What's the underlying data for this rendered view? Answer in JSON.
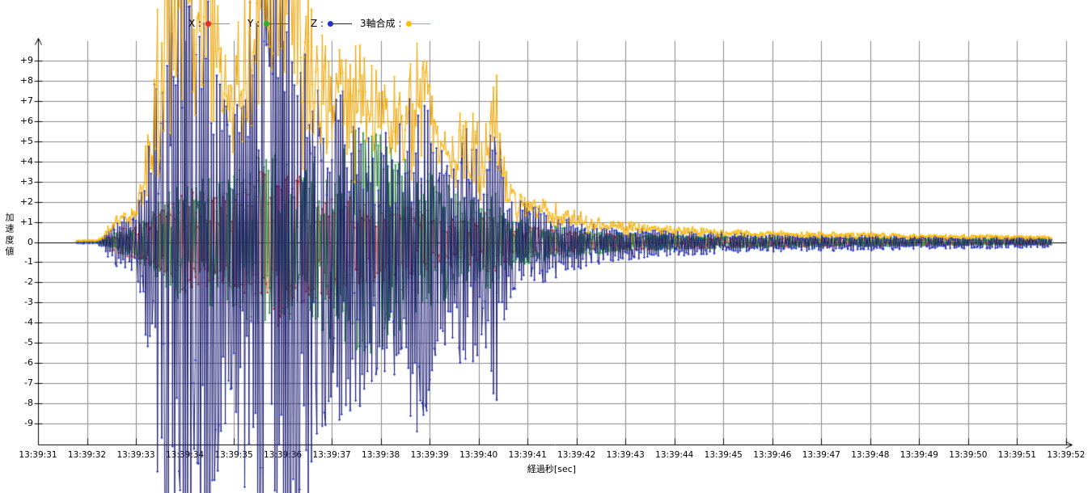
{
  "chart_data": {
    "type": "line",
    "title": "",
    "xlabel": "経過秒[sec]",
    "ylabel": "加速度値",
    "grid": true,
    "legend_position": "top",
    "ylim": [
      -9,
      9
    ],
    "y_ticks": [
      "+9",
      "+8",
      "+7",
      "+6",
      "+5",
      "+4",
      "+3",
      "+2",
      "+1",
      "0",
      "-1",
      "-2",
      "-3",
      "-4",
      "-5",
      "-6",
      "-7",
      "-8",
      "-9"
    ],
    "x_ticks": [
      "13:39:31",
      "13:39:32",
      "13:39:33",
      "13:39:34",
      "13:39:35",
      "13:39:36",
      "13:39:37",
      "13:39:38",
      "13:39:39",
      "13:39:40",
      "13:39:41",
      "13:39:42",
      "13:39:43",
      "13:39:44",
      "13:39:45",
      "13:39:46",
      "13:39:47",
      "13:39:48",
      "13:39:49",
      "13:39:50",
      "13:39:51",
      "13:39:52"
    ],
    "sampling": {
      "t_start": 0.79,
      "t_end": 20.72,
      "dt": 0.022,
      "seed": 12,
      "time_of_t0": "13:39:31"
    },
    "series": [
      {
        "name": "X",
        "legend_label": "X :",
        "color": "#f0735f",
        "marker_color": "#ee2a1a",
        "envelope": [
          [
            0.79,
            0.04
          ],
          [
            1.3,
            0.06
          ],
          [
            1.5,
            0.4
          ],
          [
            1.8,
            0.8
          ],
          [
            2.1,
            0.9
          ],
          [
            2.4,
            1.6
          ],
          [
            2.8,
            2.4
          ],
          [
            3.2,
            2.6
          ],
          [
            3.6,
            2.2
          ],
          [
            4.0,
            2.4
          ],
          [
            4.4,
            3.2
          ],
          [
            4.9,
            4.2
          ],
          [
            5.3,
            3.4
          ],
          [
            5.8,
            2.8
          ],
          [
            6.3,
            2.4
          ],
          [
            6.8,
            2.0
          ],
          [
            7.3,
            1.9
          ],
          [
            7.8,
            1.7
          ],
          [
            8.3,
            1.4
          ],
          [
            8.8,
            1.1
          ],
          [
            9.3,
            1.7
          ],
          [
            9.7,
            0.9
          ],
          [
            10.3,
            0.65
          ],
          [
            11,
            0.5
          ],
          [
            12,
            0.38
          ],
          [
            13.5,
            0.3
          ],
          [
            15,
            0.24
          ],
          [
            17,
            0.2
          ],
          [
            19,
            0.16
          ],
          [
            20.72,
            0.13
          ]
        ]
      },
      {
        "name": "Y",
        "legend_label": "Y :",
        "color": "#217a38",
        "marker_color": "#26b03c",
        "envelope": [
          [
            0.79,
            0.04
          ],
          [
            1.3,
            0.07
          ],
          [
            1.6,
            0.5
          ],
          [
            1.9,
            0.8
          ],
          [
            2.3,
            1.4
          ],
          [
            2.7,
            2.8
          ],
          [
            3.2,
            3.4
          ],
          [
            3.7,
            3.0
          ],
          [
            4.2,
            3.8
          ],
          [
            4.7,
            4.4
          ],
          [
            5.2,
            3.9
          ],
          [
            5.7,
            4.4
          ],
          [
            6.2,
            5.2
          ],
          [
            6.6,
            5.9
          ],
          [
            7.1,
            5.0
          ],
          [
            7.6,
            4.1
          ],
          [
            8.0,
            3.4
          ],
          [
            8.5,
            2.6
          ],
          [
            9.0,
            2.0
          ],
          [
            9.3,
            2.9
          ],
          [
            9.7,
            1.3
          ],
          [
            10.3,
            0.9
          ],
          [
            11,
            0.65
          ],
          [
            12,
            0.45
          ],
          [
            13.5,
            0.33
          ],
          [
            15,
            0.26
          ],
          [
            17,
            0.2
          ],
          [
            19,
            0.16
          ],
          [
            20.72,
            0.13
          ]
        ]
      },
      {
        "name": "Z",
        "legend_label": "Z :",
        "color": "#1a1a70",
        "marker_color": "#2233cc",
        "negative_bias": 1.25,
        "envelope": [
          [
            0.79,
            0.05
          ],
          [
            1.2,
            0.07
          ],
          [
            1.35,
            0.3
          ],
          [
            1.5,
            0.9
          ],
          [
            1.8,
            1.3
          ],
          [
            2.0,
            1.6
          ],
          [
            2.15,
            3
          ],
          [
            2.4,
            9
          ],
          [
            2.6,
            13
          ],
          [
            3.0,
            14
          ],
          [
            3.4,
            13
          ],
          [
            3.7,
            9
          ],
          [
            3.95,
            6
          ],
          [
            4.1,
            9
          ],
          [
            4.4,
            13
          ],
          [
            4.8,
            14
          ],
          [
            5.2,
            13
          ],
          [
            5.6,
            9
          ],
          [
            5.9,
            7
          ],
          [
            6.3,
            7.5
          ],
          [
            6.7,
            6.5
          ],
          [
            7.0,
            5.5
          ],
          [
            7.4,
            6.3
          ],
          [
            7.8,
            8.5
          ],
          [
            8.1,
            5
          ],
          [
            8.5,
            4
          ],
          [
            8.9,
            7
          ],
          [
            9.1,
            3.5
          ],
          [
            9.3,
            7.8
          ],
          [
            9.55,
            3
          ],
          [
            9.8,
            2.2
          ],
          [
            10.3,
            1.6
          ],
          [
            10.8,
            1.2
          ],
          [
            11.5,
            0.85
          ],
          [
            12.5,
            0.6
          ],
          [
            13.5,
            0.5
          ],
          [
            15,
            0.4
          ],
          [
            17,
            0.32
          ],
          [
            19,
            0.27
          ],
          [
            20.72,
            0.22
          ]
        ]
      },
      {
        "name": "3軸合成",
        "legend_label": "3軸合成 :",
        "color": "#efa400",
        "marker_color": "#ffbb00",
        "derived": "magnitude_of_xyz"
      }
    ],
    "colors": {
      "grid": "#8a8a8a",
      "axis": "#000000",
      "zero_line": "#000000",
      "background": "#ffffff"
    }
  }
}
